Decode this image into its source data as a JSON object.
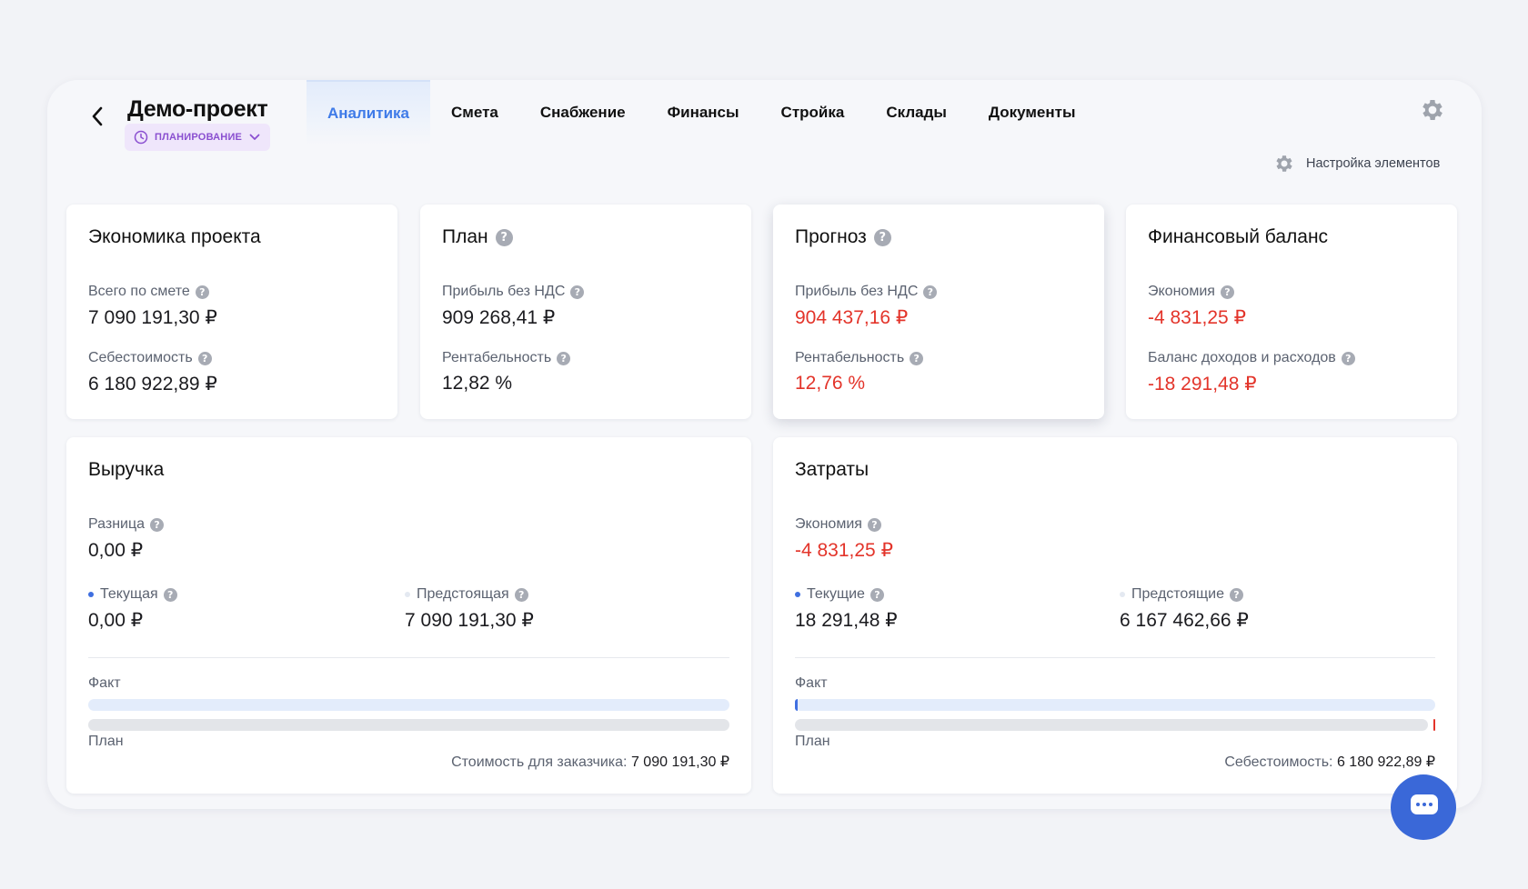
{
  "header": {
    "project_title": "Демо-проект",
    "status_label": "ПЛАНИРОВАНИЕ",
    "tabs": [
      {
        "label": "Аналитика",
        "active": true
      },
      {
        "label": "Смета"
      },
      {
        "label": "Снабжение"
      },
      {
        "label": "Финансы"
      },
      {
        "label": "Стройка"
      },
      {
        "label": "Склады"
      },
      {
        "label": "Документы"
      }
    ],
    "element_settings_label": "Настройка элементов"
  },
  "cards": {
    "economics": {
      "title": "Экономика проекта",
      "total_label": "Всего по смете",
      "total_value": "7 090 191,30 ₽",
      "cost_label": "Себестоимость",
      "cost_value": "6 180 922,89 ₽"
    },
    "plan": {
      "title": "План",
      "profit_label": "Прибыль без НДС",
      "profit_value": "909 268,41 ₽",
      "margin_label": "Рентабельность",
      "margin_value": "12,82 %"
    },
    "forecast": {
      "title": "Прогноз",
      "profit_label": "Прибыль без НДС",
      "profit_value": "904 437,16 ₽",
      "margin_label": "Рентабельность",
      "margin_value": "12,76 %"
    },
    "balance": {
      "title": "Финансовый баланс",
      "savings_label": "Экономия",
      "savings_value": "-4 831,25 ₽",
      "balance_label": "Баланс доходов и расходов",
      "balance_value": "-18 291,48 ₽"
    },
    "revenue": {
      "title": "Выручка",
      "diff_label": "Разница",
      "diff_value": "0,00 ₽",
      "current_label": "Текущая",
      "current_value": "0,00 ₽",
      "upcoming_label": "Предстоящая",
      "upcoming_value": "7 090 191,30 ₽",
      "fact_label": "Факт",
      "plan_label": "План",
      "fact_fraction": 0,
      "footer_label": "Стоимость для заказчика:",
      "footer_value": "7 090 191,30 ₽"
    },
    "costs": {
      "title": "Затраты",
      "savings_label": "Экономия",
      "savings_value": "-4 831,25 ₽",
      "current_label": "Текущие",
      "current_value": "18 291,48 ₽",
      "upcoming_label": "Предстоящие",
      "upcoming_value": "6 167 462,66 ₽",
      "fact_label": "Факт",
      "plan_label": "План",
      "fact_fraction": 0.003,
      "footer_label": "Себестоимость:",
      "footer_value": "6 180 922,89 ₽"
    }
  },
  "colors": {
    "accent": "#3f7be8",
    "negative": "#e3342a",
    "status": "#8a4fd0"
  }
}
